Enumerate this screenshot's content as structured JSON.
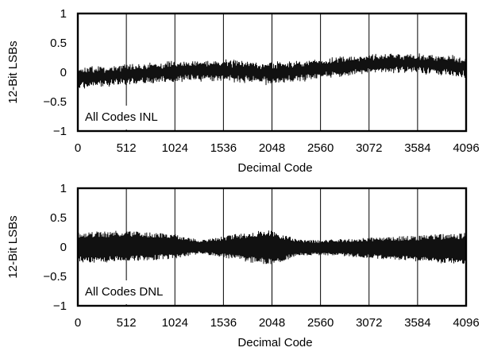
{
  "chart_data": [
    {
      "type": "line",
      "id": "inl",
      "annotation": "All Codes INL",
      "xlabel": "Decimal Code",
      "ylabel": "12-Bit LSBs",
      "xlim": [
        0,
        4096
      ],
      "ylim": [
        -1,
        1
      ],
      "xticks": [
        0,
        512,
        1024,
        1536,
        2048,
        2560,
        3072,
        3584,
        4096
      ],
      "yticks": [
        1,
        0.5,
        0,
        -0.5,
        -1
      ],
      "ytick_labels": [
        "1",
        "0.5",
        "0",
        "−0.5",
        "−1"
      ],
      "grid": "vertical",
      "series": [
        {
          "x": [
            0,
            256,
            512,
            768,
            1024,
            1280,
            1536,
            1792,
            2048,
            2304,
            2560,
            2816,
            3072,
            3328,
            3584,
            3840,
            4096
          ],
          "upper": [
            0.12,
            0.15,
            0.17,
            0.2,
            0.22,
            0.24,
            0.25,
            0.24,
            0.22,
            0.24,
            0.26,
            0.3,
            0.34,
            0.36,
            0.35,
            0.33,
            0.3
          ],
          "lower": [
            -0.33,
            -0.28,
            -0.25,
            -0.22,
            -0.2,
            -0.18,
            -0.19,
            -0.22,
            -0.26,
            -0.2,
            -0.14,
            -0.1,
            -0.06,
            -0.04,
            -0.05,
            -0.08,
            -0.12
          ]
        }
      ]
    },
    {
      "type": "line",
      "id": "dnl",
      "annotation": "All Codes DNL",
      "xlabel": "Decimal Code",
      "ylabel": "12-Bit LSBs",
      "xlim": [
        0,
        4096
      ],
      "ylim": [
        -1,
        1
      ],
      "xticks": [
        0,
        512,
        1024,
        1536,
        2048,
        2560,
        3072,
        3584,
        4096
      ],
      "yticks": [
        1,
        0.5,
        0,
        -0.5,
        -1
      ],
      "ytick_labels": [
        "1",
        "0.5",
        "0",
        "−0.5",
        "−1"
      ],
      "grid": "vertical",
      "series": [
        {
          "x": [
            0,
            256,
            512,
            768,
            1024,
            1280,
            1536,
            1792,
            2048,
            2304,
            2560,
            2816,
            3072,
            3328,
            3584,
            3840,
            4096
          ],
          "upper": [
            0.26,
            0.27,
            0.28,
            0.25,
            0.22,
            0.12,
            0.18,
            0.26,
            0.3,
            0.14,
            0.12,
            0.14,
            0.16,
            0.18,
            0.2,
            0.22,
            0.24
          ],
          "lower": [
            -0.26,
            -0.27,
            -0.26,
            -0.23,
            -0.2,
            -0.12,
            -0.18,
            -0.26,
            -0.32,
            -0.16,
            -0.14,
            -0.16,
            -0.19,
            -0.22,
            -0.25,
            -0.28,
            -0.3
          ]
        }
      ]
    }
  ]
}
